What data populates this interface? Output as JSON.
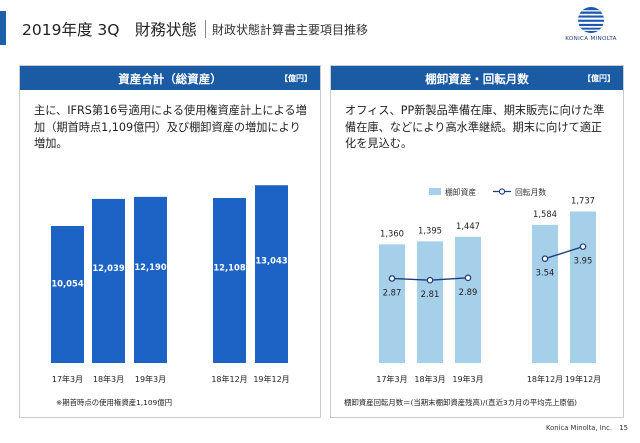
{
  "header": {
    "title": "2019年度 3Q　財務状態",
    "subtitle": "財政状態計算書主要項目推移"
  },
  "logo": {
    "text": "KONICA MINOLTA"
  },
  "left_panel": {
    "title": "資産合計（総資産）",
    "unit": "【億円】",
    "description": "主に、IFRS第16号適用による使用権資産計上による増加（期首時点1,109億円）及び棚卸資産の増加により増加。",
    "note": "※期首時点の使用権資産1,109億円"
  },
  "right_panel": {
    "title": "棚卸資産・回転月数",
    "unit": "【億円】",
    "description": "オフィス、PP新製品準備在庫、期末販売に向けた準備在庫、などにより高水準継続。期末に向けて適正化を見込む。",
    "note": "棚卸資産回転月数＝(当期末棚卸資産残高)/(直近3カ月の平均売上原価)"
  },
  "chart_data": [
    {
      "type": "bar",
      "title": "資産合計（総資産）",
      "categories": [
        "17年3月",
        "18年3月",
        "19年3月",
        "18年12月",
        "19年12月"
      ],
      "series": [
        {
          "values": [
            10054,
            12039,
            12190,
            12108,
            13043
          ]
        }
      ],
      "value_labels": [
        "10,054",
        "12,039",
        "12,190",
        "12,108",
        "13,043"
      ],
      "ylim": [
        0,
        13500
      ],
      "grid": false,
      "colors": {
        "bar": "#1d63c6"
      }
    },
    {
      "type": "bar",
      "title": "棚卸資産・回転月数",
      "categories": [
        "17年3月",
        "18年3月",
        "19年3月",
        "18年12月",
        "19年12月"
      ],
      "series": [
        {
          "name": "棚卸資産",
          "type": "bar",
          "values": [
            1360,
            1395,
            1447,
            1584,
            1737
          ]
        },
        {
          "name": "回転月数",
          "type": "line",
          "values": [
            2.87,
            2.81,
            2.89,
            3.54,
            3.95
          ]
        }
      ],
      "value_labels": [
        "1,360",
        "1,395",
        "1,447",
        "1,584",
        "1,737"
      ],
      "line_labels": [
        "2.87",
        "2.81",
        "2.89",
        "3.54",
        "3.95"
      ],
      "ylim": [
        0,
        1800
      ],
      "y2lim": [
        0,
        5.6
      ],
      "legend": "top",
      "grid": false,
      "colors": {
        "bar": "#a6cfea",
        "line": "#1b3f7a"
      }
    }
  ],
  "footer": {
    "company": "Konica Minolta, Inc.",
    "page": "15"
  }
}
